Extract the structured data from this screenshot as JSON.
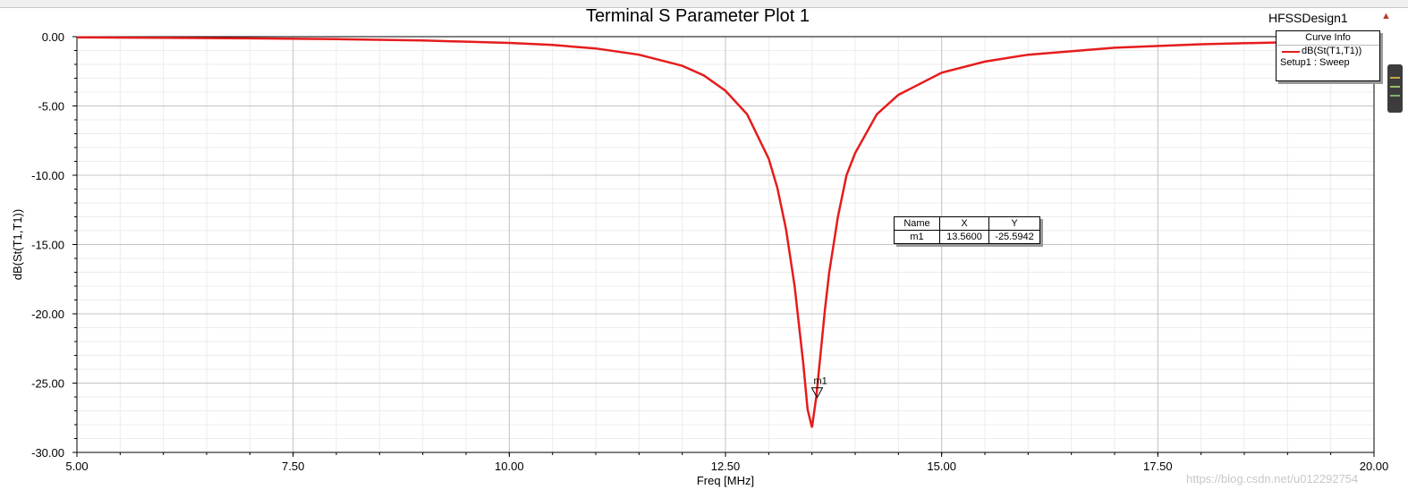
{
  "window": {
    "title": "Terminal S Parameter Plot 1",
    "design": "HFSSDesign1"
  },
  "legend": {
    "header": "Curve Info",
    "curve_name": "dB(St(T1,T1))",
    "setup": "Setup1 : Sweep"
  },
  "marker_table": {
    "headers": [
      "Name",
      "X",
      "Y"
    ],
    "rows": [
      [
        "m1",
        "13.5600",
        "-25.5942"
      ]
    ]
  },
  "watermark": "https://blog.csdn.net/u012292754",
  "chart_data": {
    "type": "line",
    "title": "Terminal S Parameter Plot 1",
    "xlabel": "Freq [MHz]",
    "ylabel": "dB(St(T1,T1))",
    "xlim": [
      5.0,
      20.0
    ],
    "ylim": [
      -30.0,
      0.0
    ],
    "xticks": [
      "5.00",
      "7.50",
      "10.00",
      "12.50",
      "15.00",
      "17.50",
      "20.00"
    ],
    "xtick_values": [
      5.0,
      7.5,
      10.0,
      12.5,
      15.0,
      17.5,
      20.0
    ],
    "yticks": [
      "0.00",
      "-5.00",
      "-10.00",
      "-15.00",
      "-20.00",
      "-25.00",
      "-30.00"
    ],
    "ytick_values": [
      0,
      -5,
      -10,
      -15,
      -20,
      -25,
      -30
    ],
    "grid": true,
    "legend_position": "top-right",
    "series": [
      {
        "name": "dB(St(T1,T1))",
        "color": "#e51c1c",
        "x": [
          5.0,
          6.0,
          7.0,
          8.0,
          9.0,
          10.0,
          10.5,
          11.0,
          11.5,
          12.0,
          12.25,
          12.5,
          12.75,
          13.0,
          13.1,
          13.2,
          13.3,
          13.4,
          13.45,
          13.5,
          13.55,
          13.6,
          13.65,
          13.7,
          13.8,
          13.9,
          14.0,
          14.25,
          14.5,
          15.0,
          15.5,
          16.0,
          17.0,
          18.0,
          19.0,
          20.0
        ],
        "y": [
          -0.05,
          -0.08,
          -0.12,
          -0.18,
          -0.28,
          -0.45,
          -0.6,
          -0.85,
          -1.3,
          -2.1,
          -2.8,
          -3.9,
          -5.6,
          -8.8,
          -10.9,
          -13.9,
          -18.0,
          -23.6,
          -26.9,
          -28.2,
          -26.0,
          -22.9,
          -19.7,
          -17.0,
          -13.0,
          -10.0,
          -8.4,
          -5.6,
          -4.2,
          -2.6,
          -1.8,
          -1.3,
          -0.8,
          -0.55,
          -0.4,
          -0.3
        ]
      }
    ],
    "markers": [
      {
        "name": "m1",
        "x": 13.56,
        "y": -25.5942
      }
    ]
  }
}
